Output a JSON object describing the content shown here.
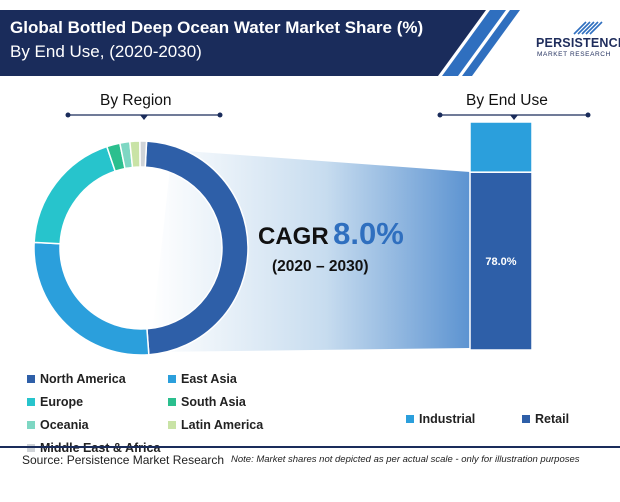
{
  "header": {
    "title_line1": "Global Bottled Deep Ocean Water Market Share (%)",
    "title_line2": "By End Use, (2020-2030)",
    "bg_color": "#1a2c5b",
    "stripe_color": "#2f6fbf"
  },
  "brand": {
    "name": "PERSISTENCE",
    "sub": "MARKET RESEARCH"
  },
  "cagr": {
    "label": "CAGR",
    "value": "8.0%",
    "period": "(2020 – 2030)"
  },
  "chart_data": [
    {
      "type": "donut",
      "title": "By Region",
      "unit": "%",
      "series": [
        {
          "name": "North America",
          "value": 48,
          "color": "#2e5fa8"
        },
        {
          "name": "East Asia",
          "value": 27,
          "color": "#2b9fdc"
        },
        {
          "name": "Europe",
          "value": 19,
          "color": "#27c4cc"
        },
        {
          "name": "South Asia",
          "value": 2,
          "color": "#2bbf8e"
        },
        {
          "name": "Oceania",
          "value": 1.5,
          "color": "#7ed7c3"
        },
        {
          "name": "Latin America",
          "value": 1.5,
          "color": "#c9e3a6"
        },
        {
          "name": "Middle East & Africa",
          "value": 1,
          "color": "#d0d4d8"
        }
      ]
    },
    {
      "type": "bar",
      "stacked": true,
      "title": "By End Use",
      "unit": "%",
      "series": [
        {
          "name": "Retail",
          "value": 78.0,
          "label": "78.0%",
          "color": "#2e5fa8"
        },
        {
          "name": "Industrial",
          "value": 22.0,
          "color": "#2b9fdc"
        }
      ]
    }
  ],
  "footer": {
    "source": "Source: Persistence Market Research",
    "note": "Note: Market shares not depicted as per actual scale - only for illustration purposes"
  }
}
